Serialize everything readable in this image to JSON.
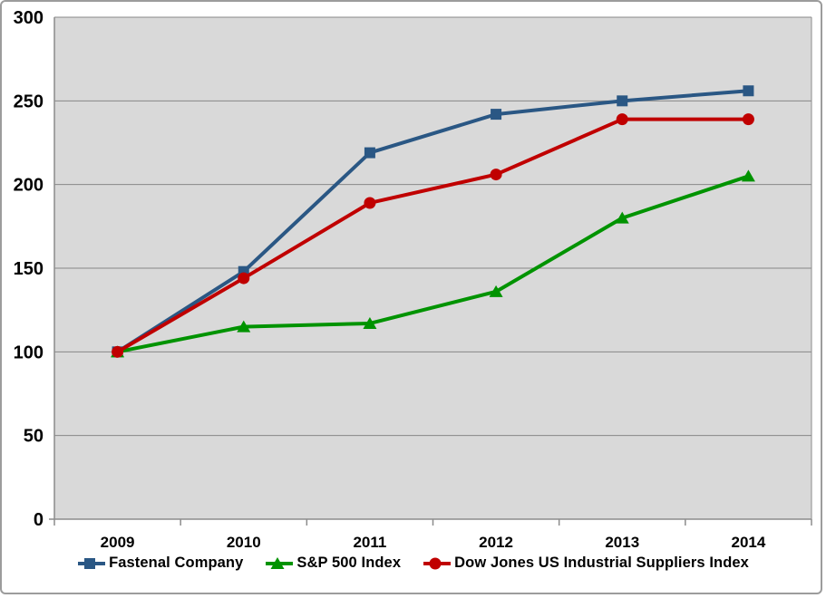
{
  "frame": {
    "background": "#ffffff",
    "border_color": "#9c9c9c"
  },
  "chart_data": {
    "type": "line",
    "categories": [
      "2009",
      "2010",
      "2011",
      "2012",
      "2013",
      "2014"
    ],
    "series": [
      {
        "name": "Fastenal Company",
        "values": [
          100,
          148,
          219,
          242,
          250,
          256
        ],
        "color": "#2a5784",
        "marker": "square"
      },
      {
        "name": "S&P 500 Index",
        "values": [
          100,
          115,
          117,
          136,
          180,
          205
        ],
        "color": "#009300",
        "marker": "triangle"
      },
      {
        "name": "Dow Jones US Industrial Suppliers Index",
        "values": [
          100,
          144,
          189,
          206,
          239,
          239
        ],
        "color": "#c00000",
        "marker": "circle"
      }
    ],
    "ylim": [
      0,
      300
    ],
    "yticks": [
      0,
      50,
      100,
      150,
      200,
      250,
      300
    ],
    "grid": true,
    "legend_position": "bottom",
    "plot_bg": "#d9d9d9",
    "grid_color": "#888888",
    "axis_color": "#8c8c8c",
    "line_width": 4,
    "xlabel": "",
    "ylabel": ""
  }
}
